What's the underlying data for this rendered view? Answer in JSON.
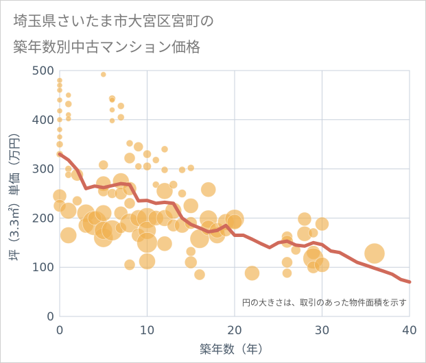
{
  "title_lines": [
    "埼玉県さいたま市大宮区宮町の",
    "築年数別中古マンション価格"
  ],
  "colors": {
    "bubble_fill": "#f0b050",
    "bubble_alpha": 0.65,
    "line": "#d06a5a",
    "grid": "#c8d0dc",
    "axis_text": "#4a5a6a"
  },
  "chart_data": {
    "type": "scatter",
    "title": "埼玉県さいたま市大宮区宮町の築年数別中古マンション価格",
    "xlabel": "築年数（年）",
    "ylabel": "坪（3.3㎡）単価（万円）",
    "xlim": [
      0,
      40
    ],
    "ylim": [
      0,
      500
    ],
    "xticks": [
      0,
      10,
      20,
      30,
      40
    ],
    "yticks": [
      0,
      100,
      200,
      300,
      400,
      500
    ],
    "grid": true,
    "annotation": "円の大きさは、取引のあった物件面積を示す",
    "bubble_size_meaning": "取引のあった物件面積",
    "bubbles": [
      {
        "x": 0,
        "y": 480,
        "s": 4
      },
      {
        "x": 0,
        "y": 470,
        "s": 4
      },
      {
        "x": 0,
        "y": 460,
        "s": 4
      },
      {
        "x": 0,
        "y": 440,
        "s": 4
      },
      {
        "x": 0,
        "y": 418,
        "s": 4
      },
      {
        "x": 0,
        "y": 400,
        "s": 4
      },
      {
        "x": 0,
        "y": 380,
        "s": 4
      },
      {
        "x": 0,
        "y": 365,
        "s": 4
      },
      {
        "x": 0,
        "y": 350,
        "s": 5
      },
      {
        "x": 0,
        "y": 330,
        "s": 5
      },
      {
        "x": 0,
        "y": 245,
        "s": 10
      },
      {
        "x": 0,
        "y": 225,
        "s": 9
      },
      {
        "x": 1,
        "y": 450,
        "s": 4
      },
      {
        "x": 1,
        "y": 432,
        "s": 5
      },
      {
        "x": 1,
        "y": 410,
        "s": 4
      },
      {
        "x": 1,
        "y": 402,
        "s": 4
      },
      {
        "x": 1,
        "y": 300,
        "s": 5
      },
      {
        "x": 1,
        "y": 288,
        "s": 5
      },
      {
        "x": 1,
        "y": 215,
        "s": 12
      },
      {
        "x": 1,
        "y": 165,
        "s": 12
      },
      {
        "x": 2,
        "y": 288,
        "s": 9
      },
      {
        "x": 2,
        "y": 235,
        "s": 7
      },
      {
        "x": 3,
        "y": 210,
        "s": 13
      },
      {
        "x": 3,
        "y": 185,
        "s": 11
      },
      {
        "x": 4,
        "y": 190,
        "s": 18
      },
      {
        "x": 4,
        "y": 200,
        "s": 10
      },
      {
        "x": 5,
        "y": 492,
        "s": 4
      },
      {
        "x": 5,
        "y": 308,
        "s": 7
      },
      {
        "x": 5,
        "y": 270,
        "s": 11
      },
      {
        "x": 5,
        "y": 255,
        "s": 8
      },
      {
        "x": 5,
        "y": 210,
        "s": 12
      },
      {
        "x": 5,
        "y": 160,
        "s": 14
      },
      {
        "x": 5,
        "y": 175,
        "s": 13
      },
      {
        "x": 6,
        "y": 443,
        "s": 5
      },
      {
        "x": 6,
        "y": 440,
        "s": 4
      },
      {
        "x": 6,
        "y": 420,
        "s": 4
      },
      {
        "x": 6,
        "y": 398,
        "s": 4
      },
      {
        "x": 6,
        "y": 250,
        "s": 7
      },
      {
        "x": 6,
        "y": 175,
        "s": 15
      },
      {
        "x": 7,
        "y": 428,
        "s": 5
      },
      {
        "x": 7,
        "y": 405,
        "s": 5
      },
      {
        "x": 7,
        "y": 275,
        "s": 12
      },
      {
        "x": 7,
        "y": 250,
        "s": 9
      },
      {
        "x": 7,
        "y": 210,
        "s": 10
      },
      {
        "x": 7,
        "y": 180,
        "s": 8
      },
      {
        "x": 8,
        "y": 352,
        "s": 5
      },
      {
        "x": 8,
        "y": 322,
        "s": 8
      },
      {
        "x": 8,
        "y": 260,
        "s": 10
      },
      {
        "x": 8,
        "y": 230,
        "s": 8
      },
      {
        "x": 8,
        "y": 190,
        "s": 14
      },
      {
        "x": 8,
        "y": 105,
        "s": 8
      },
      {
        "x": 9,
        "y": 345,
        "s": 7
      },
      {
        "x": 9,
        "y": 305,
        "s": 5
      },
      {
        "x": 9,
        "y": 200,
        "s": 12
      },
      {
        "x": 9,
        "y": 165,
        "s": 10
      },
      {
        "x": 10,
        "y": 330,
        "s": 6
      },
      {
        "x": 10,
        "y": 305,
        "s": 6
      },
      {
        "x": 10,
        "y": 200,
        "s": 15
      },
      {
        "x": 10,
        "y": 175,
        "s": 13
      },
      {
        "x": 10,
        "y": 150,
        "s": 15
      },
      {
        "x": 10,
        "y": 112,
        "s": 12
      },
      {
        "x": 11,
        "y": 318,
        "s": 5
      },
      {
        "x": 11,
        "y": 268,
        "s": 5
      },
      {
        "x": 11,
        "y": 200,
        "s": 11
      },
      {
        "x": 12,
        "y": 340,
        "s": 5
      },
      {
        "x": 12,
        "y": 298,
        "s": 5
      },
      {
        "x": 12,
        "y": 255,
        "s": 12
      },
      {
        "x": 12,
        "y": 200,
        "s": 12
      },
      {
        "x": 12,
        "y": 148,
        "s": 11
      },
      {
        "x": 13,
        "y": 268,
        "s": 6
      },
      {
        "x": 13,
        "y": 215,
        "s": 12
      },
      {
        "x": 13,
        "y": 185,
        "s": 9
      },
      {
        "x": 14,
        "y": 298,
        "s": 5
      },
      {
        "x": 14,
        "y": 250,
        "s": 6
      },
      {
        "x": 14,
        "y": 185,
        "s": 11
      },
      {
        "x": 15,
        "y": 302,
        "s": 5
      },
      {
        "x": 15,
        "y": 225,
        "s": 11
      },
      {
        "x": 15,
        "y": 190,
        "s": 9
      },
      {
        "x": 15,
        "y": 132,
        "s": 7
      },
      {
        "x": 15,
        "y": 110,
        "s": 9
      },
      {
        "x": 16,
        "y": 158,
        "s": 14
      },
      {
        "x": 16,
        "y": 85,
        "s": 8
      },
      {
        "x": 17,
        "y": 258,
        "s": 11
      },
      {
        "x": 17,
        "y": 198,
        "s": 13
      },
      {
        "x": 17,
        "y": 180,
        "s": 11
      },
      {
        "x": 18,
        "y": 165,
        "s": 12
      },
      {
        "x": 18,
        "y": 175,
        "s": 11
      },
      {
        "x": 19,
        "y": 192,
        "s": 12
      },
      {
        "x": 19,
        "y": 175,
        "s": 9
      },
      {
        "x": 20,
        "y": 198,
        "s": 14
      },
      {
        "x": 20,
        "y": 192,
        "s": 11
      },
      {
        "x": 22,
        "y": 88,
        "s": 11
      },
      {
        "x": 26,
        "y": 162,
        "s": 8
      },
      {
        "x": 26,
        "y": 152,
        "s": 9
      },
      {
        "x": 26,
        "y": 110,
        "s": 8
      },
      {
        "x": 26,
        "y": 88,
        "s": 7
      },
      {
        "x": 27,
        "y": 135,
        "s": 7
      },
      {
        "x": 28,
        "y": 198,
        "s": 10
      },
      {
        "x": 28,
        "y": 168,
        "s": 11
      },
      {
        "x": 29,
        "y": 130,
        "s": 10
      },
      {
        "x": 29,
        "y": 118,
        "s": 15
      },
      {
        "x": 29,
        "y": 100,
        "s": 9
      },
      {
        "x": 29,
        "y": 170,
        "s": 7
      },
      {
        "x": 30,
        "y": 188,
        "s": 10
      },
      {
        "x": 30,
        "y": 105,
        "s": 11
      },
      {
        "x": 36,
        "y": 128,
        "s": 15
      }
    ],
    "series": [
      {
        "x": [
          0,
          1,
          2,
          3,
          4,
          5,
          6,
          7,
          8,
          9,
          10,
          11,
          12,
          13,
          14,
          15,
          16,
          17,
          18,
          19,
          20,
          21,
          22,
          23,
          24,
          25,
          26,
          27,
          28,
          29,
          30,
          31,
          32,
          33,
          34,
          35,
          36,
          37,
          38,
          39,
          40
        ],
        "y": [
          330,
          318,
          298,
          260,
          265,
          262,
          266,
          270,
          268,
          235,
          236,
          230,
          232,
          230,
          200,
          187,
          180,
          172,
          175,
          185,
          165,
          165,
          157,
          148,
          140,
          150,
          153,
          145,
          143,
          150,
          146,
          133,
          130,
          120,
          110,
          104,
          98,
          92,
          86,
          75,
          70
        ]
      }
    ]
  }
}
